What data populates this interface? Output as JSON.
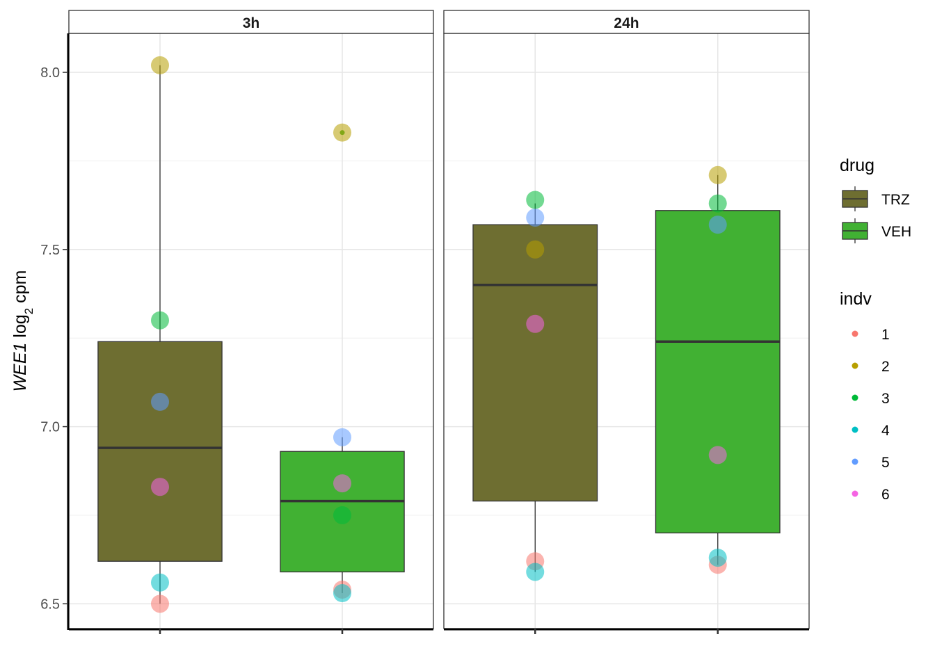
{
  "chart_data": {
    "type": "boxplot",
    "facets": [
      {
        "label": "3h",
        "boxes": [
          {
            "drug": "TRZ",
            "min": 6.5,
            "q1": 6.62,
            "median": 6.94,
            "q3": 7.24,
            "max": 8.02
          },
          {
            "drug": "VEH",
            "min": 6.53,
            "q1": 6.59,
            "median": 6.79,
            "q3": 6.93,
            "max": 6.97,
            "outliers": [
              7.83
            ]
          }
        ],
        "points": [
          {
            "drug": "TRZ",
            "indv": "1",
            "value": 6.5
          },
          {
            "drug": "TRZ",
            "indv": "2",
            "value": 8.02
          },
          {
            "drug": "TRZ",
            "indv": "3",
            "value": 7.3
          },
          {
            "drug": "TRZ",
            "indv": "4",
            "value": 6.56
          },
          {
            "drug": "TRZ",
            "indv": "5",
            "value": 7.07
          },
          {
            "drug": "TRZ",
            "indv": "6",
            "value": 6.83
          },
          {
            "drug": "VEH",
            "indv": "1",
            "value": 6.54
          },
          {
            "drug": "VEH",
            "indv": "2",
            "value": 7.83
          },
          {
            "drug": "VEH",
            "indv": "3",
            "value": 6.75
          },
          {
            "drug": "VEH",
            "indv": "4",
            "value": 6.53
          },
          {
            "drug": "VEH",
            "indv": "5",
            "value": 6.97
          },
          {
            "drug": "VEH",
            "indv": "6",
            "value": 6.84
          }
        ]
      },
      {
        "label": "24h",
        "boxes": [
          {
            "drug": "TRZ",
            "min": 6.59,
            "q1": 6.79,
            "median": 7.4,
            "q3": 7.57,
            "max": 7.63
          },
          {
            "drug": "VEH",
            "min": 6.61,
            "q1": 6.7,
            "median": 7.24,
            "q3": 7.61,
            "max": 7.71
          }
        ],
        "points": [
          {
            "drug": "TRZ",
            "indv": "1",
            "value": 6.62
          },
          {
            "drug": "TRZ",
            "indv": "2",
            "value": 7.5
          },
          {
            "drug": "TRZ",
            "indv": "3",
            "value": 7.64
          },
          {
            "drug": "TRZ",
            "indv": "4",
            "value": 6.59
          },
          {
            "drug": "TRZ",
            "indv": "5",
            "value": 7.59
          },
          {
            "drug": "TRZ",
            "indv": "6",
            "value": 7.29
          },
          {
            "drug": "VEH",
            "indv": "1",
            "value": 6.61
          },
          {
            "drug": "VEH",
            "indv": "2",
            "value": 7.71
          },
          {
            "drug": "VEH",
            "indv": "3",
            "value": 7.63
          },
          {
            "drug": "VEH",
            "indv": "4",
            "value": 6.63
          },
          {
            "drug": "VEH",
            "indv": "5",
            "value": 7.57
          },
          {
            "drug": "VEH",
            "indv": "6",
            "value": 6.92
          }
        ]
      }
    ],
    "x_categories": [
      "TRZ",
      "VEH"
    ],
    "ylabel": {
      "gene": "WEE1",
      "prefix": "log",
      "subscript": "2",
      "suffix": "cpm"
    },
    "ylim": [
      6.43,
      8.11
    ],
    "yticks": [
      6.5,
      7.0,
      7.5,
      8.0
    ],
    "ytick_labels": [
      "6.5",
      "7.0",
      "7.5",
      "8.0"
    ],
    "grid": true,
    "legend_position": "right",
    "legends": [
      {
        "title": "drug",
        "items": [
          {
            "label": "TRZ",
            "color": "#6e6e31"
          },
          {
            "label": "VEH",
            "color": "#41b133"
          }
        ]
      },
      {
        "title": "indv",
        "items": [
          {
            "label": "1",
            "color": "#f8766d"
          },
          {
            "label": "2",
            "color": "#b79f00"
          },
          {
            "label": "3",
            "color": "#00ba38"
          },
          {
            "label": "4",
            "color": "#00bfc4"
          },
          {
            "label": "5",
            "color": "#619cff"
          },
          {
            "label": "6",
            "color": "#f564e3"
          }
        ]
      }
    ]
  }
}
